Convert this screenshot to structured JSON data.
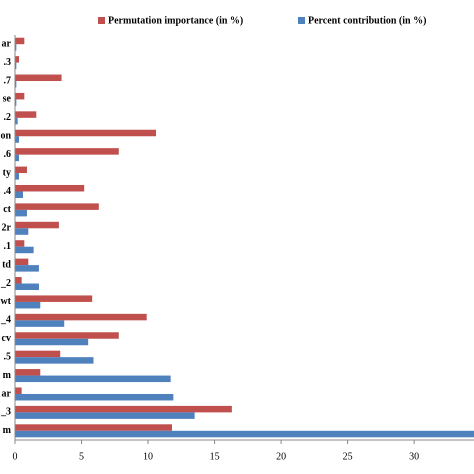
{
  "chart_data": {
    "type": "barh",
    "categories": [
      "ar",
      ".3",
      ".7",
      "se",
      ".2",
      "on",
      ".6",
      "ty",
      ".4",
      "ct",
      "2r",
      ".1",
      "td",
      "_2",
      "wt",
      "_4",
      "cv",
      ".5",
      "m",
      "ar",
      "_3",
      "m"
    ],
    "series": [
      {
        "name": "Permutation importance (in %)",
        "color": "#c0504d",
        "values": [
          0.7,
          0.3,
          3.5,
          0.7,
          1.6,
          10.6,
          7.8,
          0.9,
          5.2,
          6.3,
          3.3,
          0.7,
          1.0,
          0.5,
          5.8,
          9.9,
          7.8,
          3.4,
          1.9,
          0.5,
          16.3,
          11.8
        ]
      },
      {
        "name": "Percent contribution (in %)",
        "color": "#4f81bd",
        "values": [
          0.1,
          0.1,
          0.1,
          0.1,
          0.2,
          0.3,
          0.3,
          0.3,
          0.6,
          0.9,
          1.0,
          1.4,
          1.8,
          1.8,
          1.9,
          3.7,
          5.5,
          5.9,
          11.7,
          11.9,
          13.5,
          35
        ]
      }
    ],
    "xlim": [
      0,
      34.5
    ],
    "xticks": [
      0,
      5,
      10,
      15,
      20,
      25,
      30
    ],
    "legend": "top"
  }
}
